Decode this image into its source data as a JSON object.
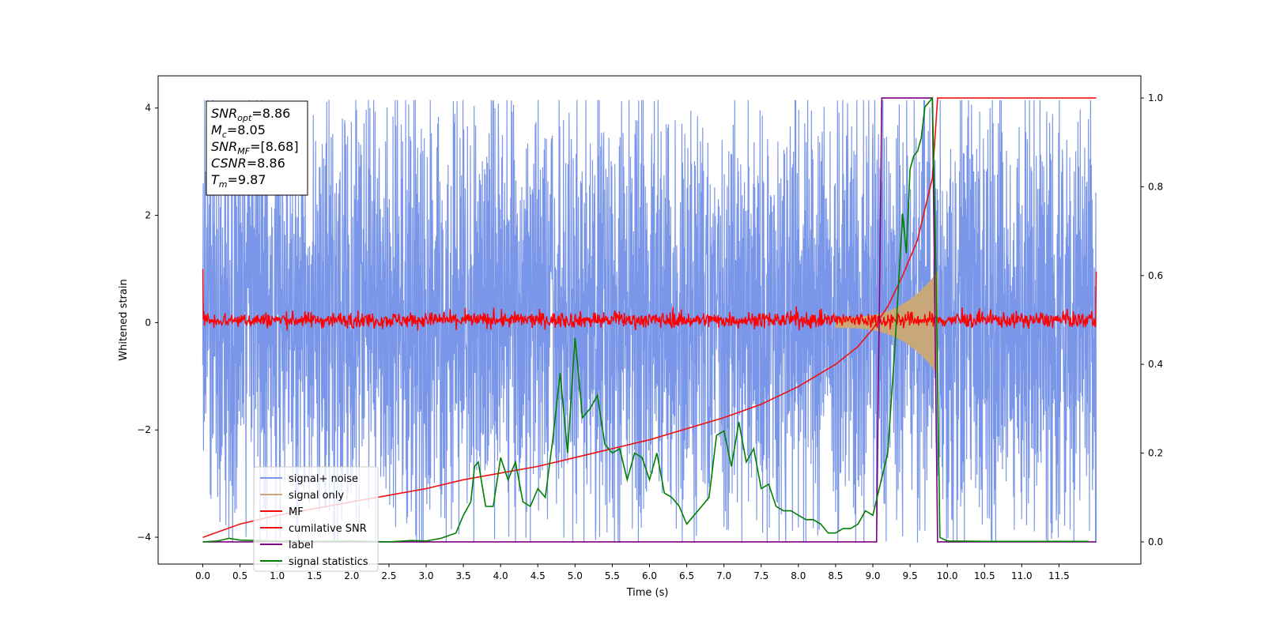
{
  "chart_data": {
    "type": "line",
    "title": "",
    "xlabel": "Time (s)",
    "ylabel": "Whitened strain",
    "ylabel_right": "",
    "xlim": [
      -0.6,
      12.6
    ],
    "ylim": [
      -4.5,
      4.6
    ],
    "ylim_right": [
      -0.05,
      1.05
    ],
    "x_ticks": [
      0.0,
      0.5,
      1.0,
      1.5,
      2.0,
      2.5,
      3.0,
      3.5,
      4.0,
      4.5,
      5.0,
      5.5,
      6.0,
      6.5,
      7.0,
      7.5,
      8.0,
      8.5,
      9.0,
      9.5,
      10.0,
      10.5,
      11.0,
      11.5
    ],
    "x_tick_labels": [
      "0.0",
      "0.5",
      "1.0",
      "1.5",
      "2.0",
      "2.5",
      "3.0",
      "3.5",
      "4.0",
      "4.5",
      "5.0",
      "5.5",
      "6.0",
      "6.5",
      "7.0",
      "7.5",
      "8.0",
      "8.5",
      "9.0",
      "9.5",
      "10.0",
      "10.5",
      "11.0",
      "11.5"
    ],
    "y_ticks": [
      -4,
      -2,
      0,
      2,
      4
    ],
    "y_tick_labels": [
      "−4",
      "−2",
      "0",
      "2",
      "4"
    ],
    "y_right_ticks": [
      0.0,
      0.2,
      0.4,
      0.6,
      0.8,
      1.0
    ],
    "y_right_tick_labels": [
      "0.0",
      "0.2",
      "0.4",
      "0.6",
      "0.8",
      "1.0"
    ],
    "grid": false,
    "legend_position": "lower-left",
    "info_box": [
      {
        "base": "SNR",
        "sub": "opt",
        "value": "=8.86"
      },
      {
        "base": "M",
        "sub": "c",
        "value": "=8.05"
      },
      {
        "base": "SNR",
        "sub": "MF",
        "value": "=[8.68]"
      },
      {
        "base": "CSNR",
        "sub": "",
        "value": "=8.86"
      },
      {
        "base": "T",
        "sub": "m",
        "value": "=9.87"
      }
    ],
    "series": [
      {
        "name": "signal+ noise",
        "axis": "left",
        "color": "#7a96e8",
        "x_range": [
          0.0,
          12.0
        ],
        "envelope_upper": 2.6,
        "envelope_lower": -2.3,
        "peak_max": 4.15,
        "peak_min": -4.1
      },
      {
        "name": "signal only",
        "axis": "left",
        "color": "#c8a878",
        "x_range": [
          8.5,
          9.87
        ],
        "amplitude_start": 0.1,
        "amplitude_end": 0.95
      },
      {
        "name": "MF",
        "axis": "left",
        "color": "#ff0000",
        "x_range": [
          0.0,
          12.0
        ],
        "mean": 0.05,
        "spread": 0.12,
        "start_value": 1.0,
        "end_value": 0.95
      },
      {
        "name": "cumilative SNR",
        "axis": "right",
        "color": "#ee1111",
        "x": [
          0.0,
          0.5,
          1.0,
          1.5,
          2.0,
          2.5,
          3.0,
          3.5,
          4.0,
          4.5,
          5.0,
          5.5,
          6.0,
          6.5,
          7.0,
          7.5,
          8.0,
          8.5,
          8.8,
          9.0,
          9.2,
          9.4,
          9.6,
          9.8,
          9.87,
          12.0
        ],
        "values": [
          0.01,
          0.04,
          0.06,
          0.075,
          0.09,
          0.105,
          0.12,
          0.14,
          0.155,
          0.17,
          0.19,
          0.21,
          0.23,
          0.255,
          0.28,
          0.31,
          0.35,
          0.4,
          0.44,
          0.48,
          0.53,
          0.6,
          0.68,
          0.82,
          1.0,
          1.0
        ]
      },
      {
        "name": "label",
        "axis": "right",
        "color": "#800080",
        "x": [
          0.0,
          9.05,
          9.12,
          9.8,
          9.87,
          12.0
        ],
        "values": [
          0.0,
          0.0,
          1.0,
          1.0,
          0.0,
          0.0
        ]
      },
      {
        "name": "signal statistics",
        "axis": "right",
        "color": "#008000",
        "x": [
          0.0,
          0.2,
          0.35,
          0.5,
          0.7,
          1.0,
          1.5,
          2.0,
          2.5,
          2.8,
          3.0,
          3.2,
          3.4,
          3.5,
          3.6,
          3.65,
          3.7,
          3.8,
          3.9,
          4.0,
          4.1,
          4.2,
          4.3,
          4.4,
          4.5,
          4.6,
          4.7,
          4.8,
          4.9,
          5.0,
          5.1,
          5.2,
          5.3,
          5.4,
          5.5,
          5.6,
          5.7,
          5.8,
          5.9,
          6.0,
          6.1,
          6.2,
          6.3,
          6.4,
          6.5,
          6.6,
          6.7,
          6.8,
          6.9,
          7.0,
          7.1,
          7.2,
          7.3,
          7.4,
          7.5,
          7.6,
          7.7,
          7.8,
          7.9,
          8.0,
          8.1,
          8.2,
          8.3,
          8.4,
          8.5,
          8.6,
          8.7,
          8.8,
          8.9,
          9.0,
          9.1,
          9.2,
          9.3,
          9.4,
          9.45,
          9.5,
          9.55,
          9.6,
          9.65,
          9.7,
          9.75,
          9.8,
          9.85,
          9.9,
          10.0,
          10.5,
          11.0,
          11.5,
          11.9
        ],
        "values": [
          0.0,
          0.002,
          0.008,
          0.004,
          0.003,
          0.002,
          0.001,
          0.002,
          0.0,
          0.003,
          0.002,
          0.008,
          0.02,
          0.06,
          0.09,
          0.17,
          0.18,
          0.08,
          0.08,
          0.19,
          0.14,
          0.18,
          0.09,
          0.08,
          0.12,
          0.1,
          0.23,
          0.38,
          0.2,
          0.46,
          0.28,
          0.3,
          0.33,
          0.22,
          0.2,
          0.21,
          0.14,
          0.2,
          0.19,
          0.14,
          0.2,
          0.11,
          0.1,
          0.08,
          0.04,
          0.06,
          0.08,
          0.1,
          0.24,
          0.25,
          0.17,
          0.27,
          0.18,
          0.21,
          0.12,
          0.13,
          0.08,
          0.07,
          0.07,
          0.06,
          0.05,
          0.05,
          0.04,
          0.02,
          0.02,
          0.03,
          0.03,
          0.04,
          0.07,
          0.06,
          0.13,
          0.2,
          0.45,
          0.74,
          0.65,
          0.84,
          0.87,
          0.88,
          0.91,
          0.98,
          0.99,
          1.0,
          0.6,
          0.01,
          0.002,
          0.001,
          0.001,
          0.001,
          0.001
        ]
      }
    ]
  }
}
